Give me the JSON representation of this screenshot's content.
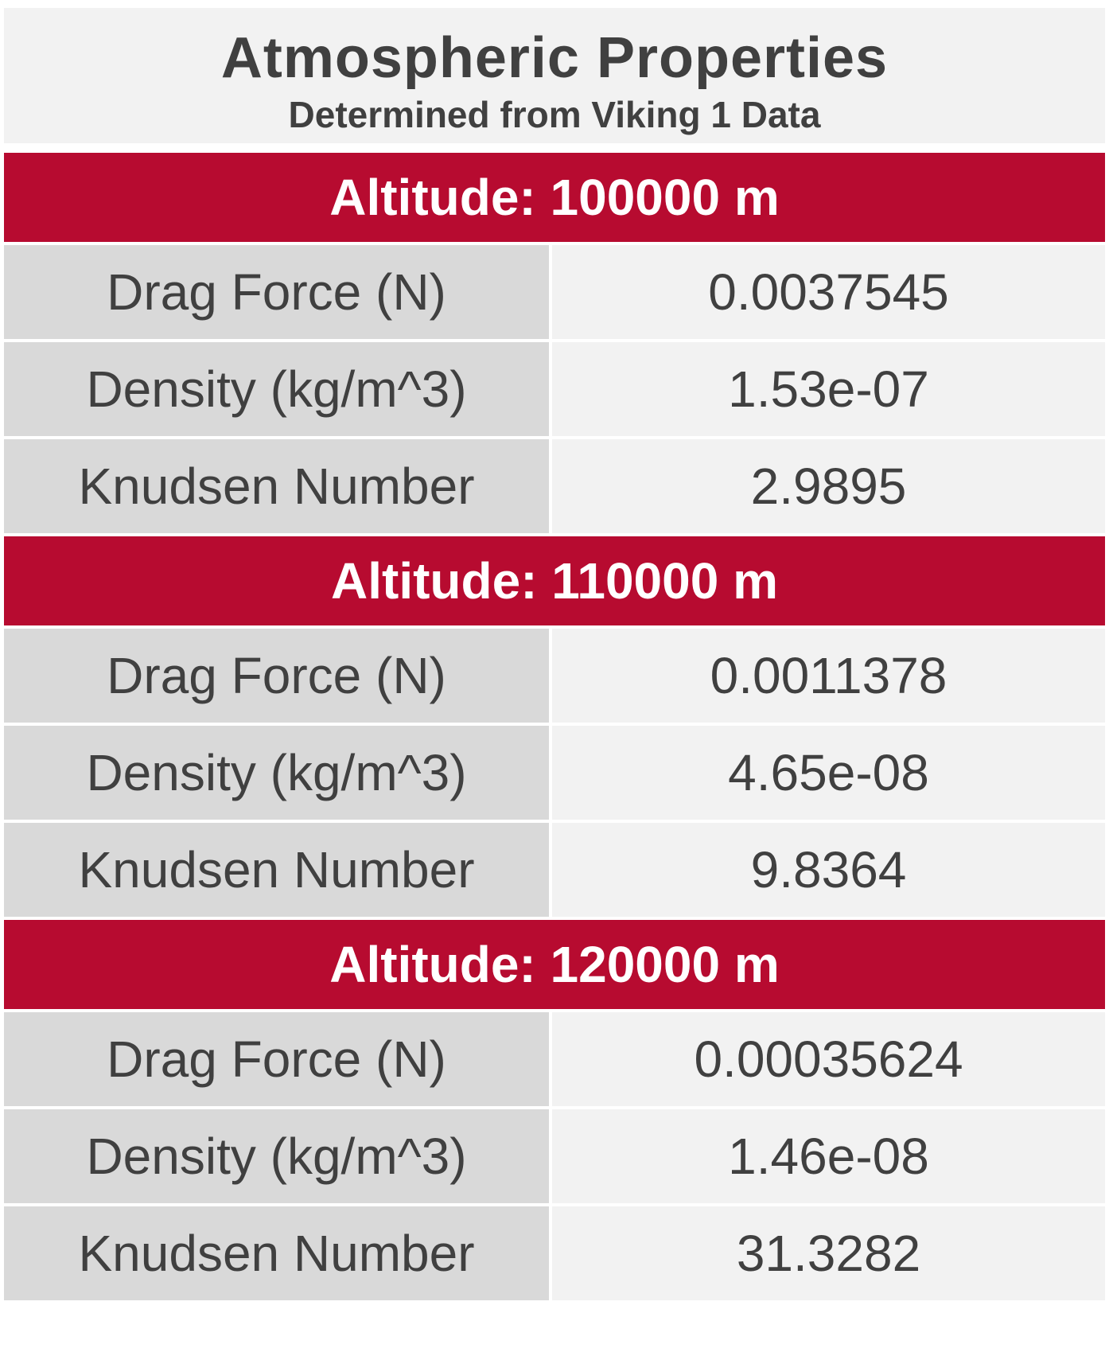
{
  "title": "Atmospheric Properties",
  "subtitle": "Determined from Viking 1 Data",
  "sections": [
    {
      "header": "Altitude: 100000 m",
      "rows": [
        {
          "label": "Drag Force (N)",
          "value": "0.0037545"
        },
        {
          "label": "Density (kg/m^3)",
          "value": "1.53e-07"
        },
        {
          "label": "Knudsen Number",
          "value": "2.9895"
        }
      ]
    },
    {
      "header": "Altitude: 110000 m",
      "rows": [
        {
          "label": "Drag Force (N)",
          "value": "0.0011378"
        },
        {
          "label": "Density (kg/m^3)",
          "value": "4.65e-08"
        },
        {
          "label": "Knudsen Number",
          "value": "9.8364"
        }
      ]
    },
    {
      "header": "Altitude: 120000 m",
      "rows": [
        {
          "label": "Drag Force (N)",
          "value": "0.00035624"
        },
        {
          "label": "Density (kg/m^3)",
          "value": "1.46e-08"
        },
        {
          "label": "Knudsen Number",
          "value": "31.3282"
        }
      ]
    }
  ],
  "colors": {
    "header_bg": "#b70b30",
    "label_bg": "#d9d9d9",
    "value_bg": "#f2f2f2",
    "text": "#404040"
  }
}
